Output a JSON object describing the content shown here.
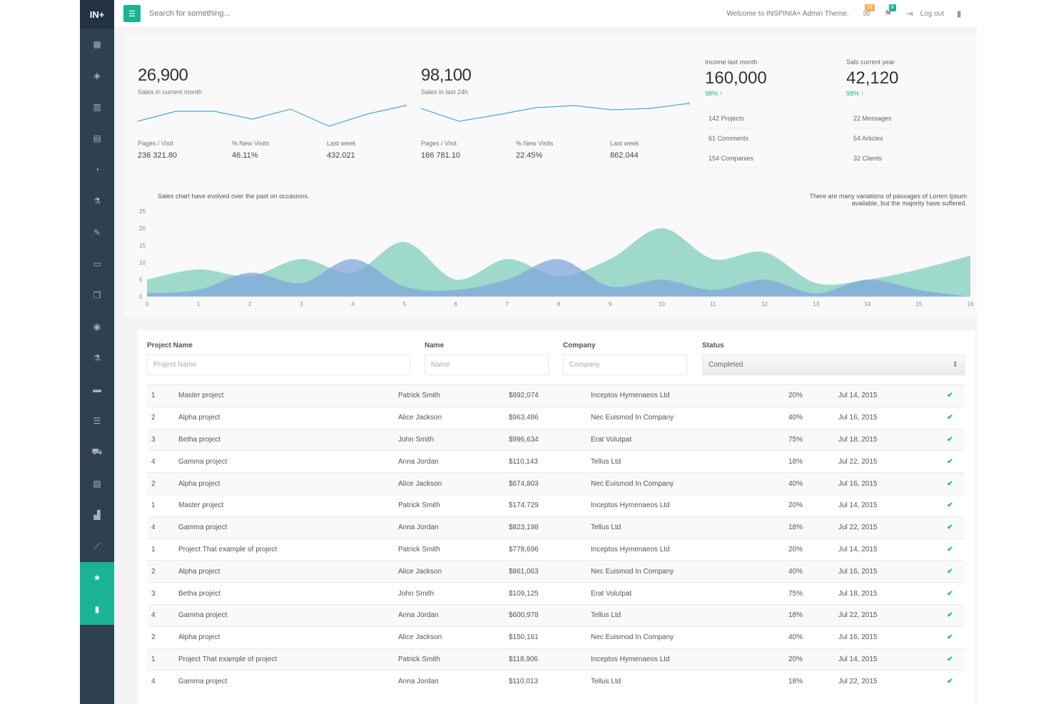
{
  "brand": "IN+",
  "search": {
    "placeholder": "Search for something..."
  },
  "header": {
    "welcome": "Welcome to INSPINIA+ Admin Theme.",
    "messages_count": "16",
    "alerts_count": "8",
    "logout_label": "Log out"
  },
  "sidebar": {
    "items": [
      {
        "icon": "th-large-icon",
        "glyph": "▦"
      },
      {
        "icon": "diamond-icon",
        "glyph": "◈"
      },
      {
        "icon": "bar-chart-icon",
        "glyph": "▥"
      },
      {
        "icon": "envelope-icon",
        "glyph": "▤"
      },
      {
        "icon": "pie-chart-icon",
        "glyph": "◔"
      },
      {
        "icon": "flask-icon",
        "glyph": "⚗"
      },
      {
        "icon": "edit-icon",
        "glyph": "✎"
      },
      {
        "icon": "desktop-icon",
        "glyph": "▭"
      },
      {
        "icon": "files-icon",
        "glyph": "❐"
      },
      {
        "icon": "globe-icon",
        "glyph": "◉"
      },
      {
        "icon": "flask-icon",
        "glyph": "⚗"
      },
      {
        "icon": "laptop-icon",
        "glyph": "▬"
      },
      {
        "icon": "th-list-icon",
        "glyph": "☰"
      },
      {
        "icon": "shopping-cart-icon",
        "glyph": "⛟"
      },
      {
        "icon": "picture-icon",
        "glyph": "▨"
      },
      {
        "icon": "sitemap-icon",
        "glyph": "▟"
      },
      {
        "icon": "magic-icon",
        "glyph": "⟋"
      },
      {
        "icon": "star-icon",
        "glyph": "★"
      },
      {
        "icon": "database-icon",
        "glyph": "▮"
      }
    ],
    "active_indices": [
      17,
      18
    ]
  },
  "stats": {
    "left": {
      "value": "26,900",
      "caption": "Sales in current month",
      "metrics": [
        {
          "label": "Pages / Visit",
          "value": "236 321.80"
        },
        {
          "label": "% New Visits",
          "value": "46.11%"
        },
        {
          "label": "Last week",
          "value": "432.021"
        }
      ]
    },
    "mid": {
      "value": "98,100",
      "caption": "Sales in last 24h",
      "metrics": [
        {
          "label": "Pages / Visit",
          "value": "166 781.10"
        },
        {
          "label": "% New Visits",
          "value": "22.45%"
        },
        {
          "label": "Last week",
          "value": "862.044"
        }
      ]
    },
    "right": [
      {
        "label": "Income last month",
        "value": "160,000",
        "pct": "98% ↑"
      },
      {
        "label": "Sals current year",
        "value": "42,120",
        "pct": "98% ↑"
      }
    ],
    "list_left": [
      "142 Projects",
      "61 Comments",
      "154 Companies"
    ],
    "list_right": [
      "22 Messages",
      "54 Articles",
      "32 Clients"
    ]
  },
  "sparklines": {
    "left": [
      10,
      24,
      24,
      13,
      27,
      3,
      20,
      32
    ],
    "mid": [
      28,
      10,
      19,
      29,
      32,
      26,
      28,
      35
    ]
  },
  "chart_data": {
    "type": "area",
    "note_left": "Sales chart have evolved over the past on occasions.",
    "note_right": "There are many variations of passages of Lorem Ipsum available, but the majority have suffered.",
    "y_ticks": [
      "0",
      "5",
      "10",
      "15",
      "20",
      "25"
    ],
    "x": [
      0,
      1,
      2,
      3,
      4,
      5,
      6,
      7,
      8,
      9,
      10,
      11,
      12,
      13,
      14,
      15,
      16
    ],
    "ylim": [
      0,
      25
    ],
    "series": [
      {
        "color": "#8fd3c4",
        "values": [
          5,
          8,
          6,
          11,
          7,
          16,
          5,
          11,
          6,
          11,
          20,
          11,
          13,
          4,
          5,
          8,
          12
        ]
      },
      {
        "color": "#7fa7d9",
        "values": [
          1,
          2,
          7,
          4,
          11,
          3,
          2,
          5,
          11,
          3,
          5,
          2,
          5,
          1,
          5,
          2,
          0
        ]
      }
    ]
  },
  "filters": {
    "project_label": "Project Name",
    "project_placeholder": "Project Name",
    "name_label": "Name",
    "name_placeholder": "Name",
    "company_label": "Company",
    "company_placeholder": "Company",
    "status_label": "Status",
    "status_value": "Completed"
  },
  "table": {
    "rows": [
      [
        "1",
        "Master project",
        "Patrick Smith",
        "$892,074",
        "Inceptos Hymenaeos Ltd",
        "20%",
        "Jul 14, 2015"
      ],
      [
        "2",
        "Alpha project",
        "Alice Jackson",
        "$963,486",
        "Nec Euismod In Company",
        "40%",
        "Jul 16, 2015"
      ],
      [
        "3",
        "Betha project",
        "John Smith",
        "$996,634",
        "Erat Volutpat",
        "75%",
        "Jul 18, 2015"
      ],
      [
        "4",
        "Gamma project",
        "Anna Jordan",
        "$110,143",
        "Tellus Ltd",
        "18%",
        "Jul 22, 2015"
      ],
      [
        "2",
        "Alpha project",
        "Alice Jackson",
        "$674,803",
        "Nec Euismod In Company",
        "40%",
        "Jul 16, 2015"
      ],
      [
        "1",
        "Master project",
        "Patrick Smith",
        "$174,729",
        "Inceptos Hymenaeos Ltd",
        "20%",
        "Jul 14, 2015"
      ],
      [
        "4",
        "Gamma project",
        "Anna Jordan",
        "$823,198",
        "Tellus Ltd",
        "18%",
        "Jul 22, 2015"
      ],
      [
        "1",
        "Project That example of project",
        "Patrick Smith",
        "$778,696",
        "Inceptos Hymenaeos Ltd",
        "20%",
        "Jul 14, 2015"
      ],
      [
        "2",
        "Alpha project",
        "Alice Jackson",
        "$861,063",
        "Nec Euismod In Company",
        "40%",
        "Jul 16, 2015"
      ],
      [
        "3",
        "Betha project",
        "John Smith",
        "$109,125",
        "Erat Volutpat",
        "75%",
        "Jul 18, 2015"
      ],
      [
        "4",
        "Gamma project",
        "Anna Jordan",
        "$600,978",
        "Tellus Ltd",
        "18%",
        "Jul 22, 2015"
      ],
      [
        "2",
        "Alpha project",
        "Alice Jackson",
        "$150,161",
        "Nec Euismod In Company",
        "40%",
        "Jul 16, 2015"
      ],
      [
        "1",
        "Project That example of project",
        "Patrick Smith",
        "$118,906",
        "Inceptos Hymenaeos Ltd",
        "20%",
        "Jul 14, 2015"
      ],
      [
        "4",
        "Gamma project",
        "Anna Jordan",
        "$110,013",
        "Tellus Ltd",
        "18%",
        "Jul 22, 2015"
      ]
    ],
    "check_glyph": "✔"
  }
}
